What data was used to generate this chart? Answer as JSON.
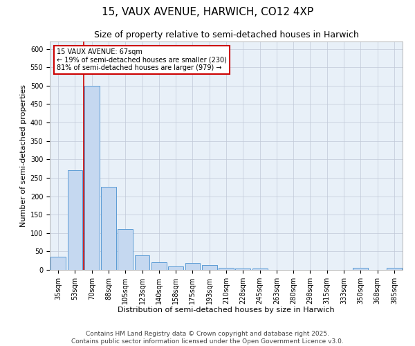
{
  "title": "15, VAUX AVENUE, HARWICH, CO12 4XP",
  "subtitle": "Size of property relative to semi-detached houses in Harwich",
  "xlabel": "Distribution of semi-detached houses by size in Harwich",
  "ylabel": "Number of semi-detached properties",
  "categories": [
    "35sqm",
    "53sqm",
    "70sqm",
    "88sqm",
    "105sqm",
    "123sqm",
    "140sqm",
    "158sqm",
    "175sqm",
    "193sqm",
    "210sqm",
    "228sqm",
    "245sqm",
    "263sqm",
    "280sqm",
    "298sqm",
    "315sqm",
    "333sqm",
    "350sqm",
    "368sqm",
    "385sqm"
  ],
  "values": [
    35,
    270,
    500,
    225,
    110,
    40,
    20,
    10,
    18,
    13,
    5,
    3,
    3,
    0,
    0,
    0,
    0,
    0,
    5,
    0,
    5
  ],
  "bar_color": "#c5d8f0",
  "bar_edge_color": "#5b9bd5",
  "redline_x": 1.5,
  "annotation_text_line1": "15 VAUX AVENUE: 67sqm",
  "annotation_text_line2": "← 19% of semi-detached houses are smaller (230)",
  "annotation_text_line3": "81% of semi-detached houses are larger (979) →",
  "annotation_box_color": "#cc0000",
  "ylim": [
    0,
    620
  ],
  "yticks": [
    0,
    50,
    100,
    150,
    200,
    250,
    300,
    350,
    400,
    450,
    500,
    550,
    600
  ],
  "footer_line1": "Contains HM Land Registry data © Crown copyright and database right 2025.",
  "footer_line2": "Contains public sector information licensed under the Open Government Licence v3.0.",
  "bg_color": "#ffffff",
  "plot_bg_color": "#e8f0f8",
  "grid_color": "#c0c8d8",
  "title_fontsize": 11,
  "subtitle_fontsize": 9,
  "axis_label_fontsize": 8,
  "tick_fontsize": 7,
  "annotation_fontsize": 7,
  "footer_fontsize": 6.5
}
